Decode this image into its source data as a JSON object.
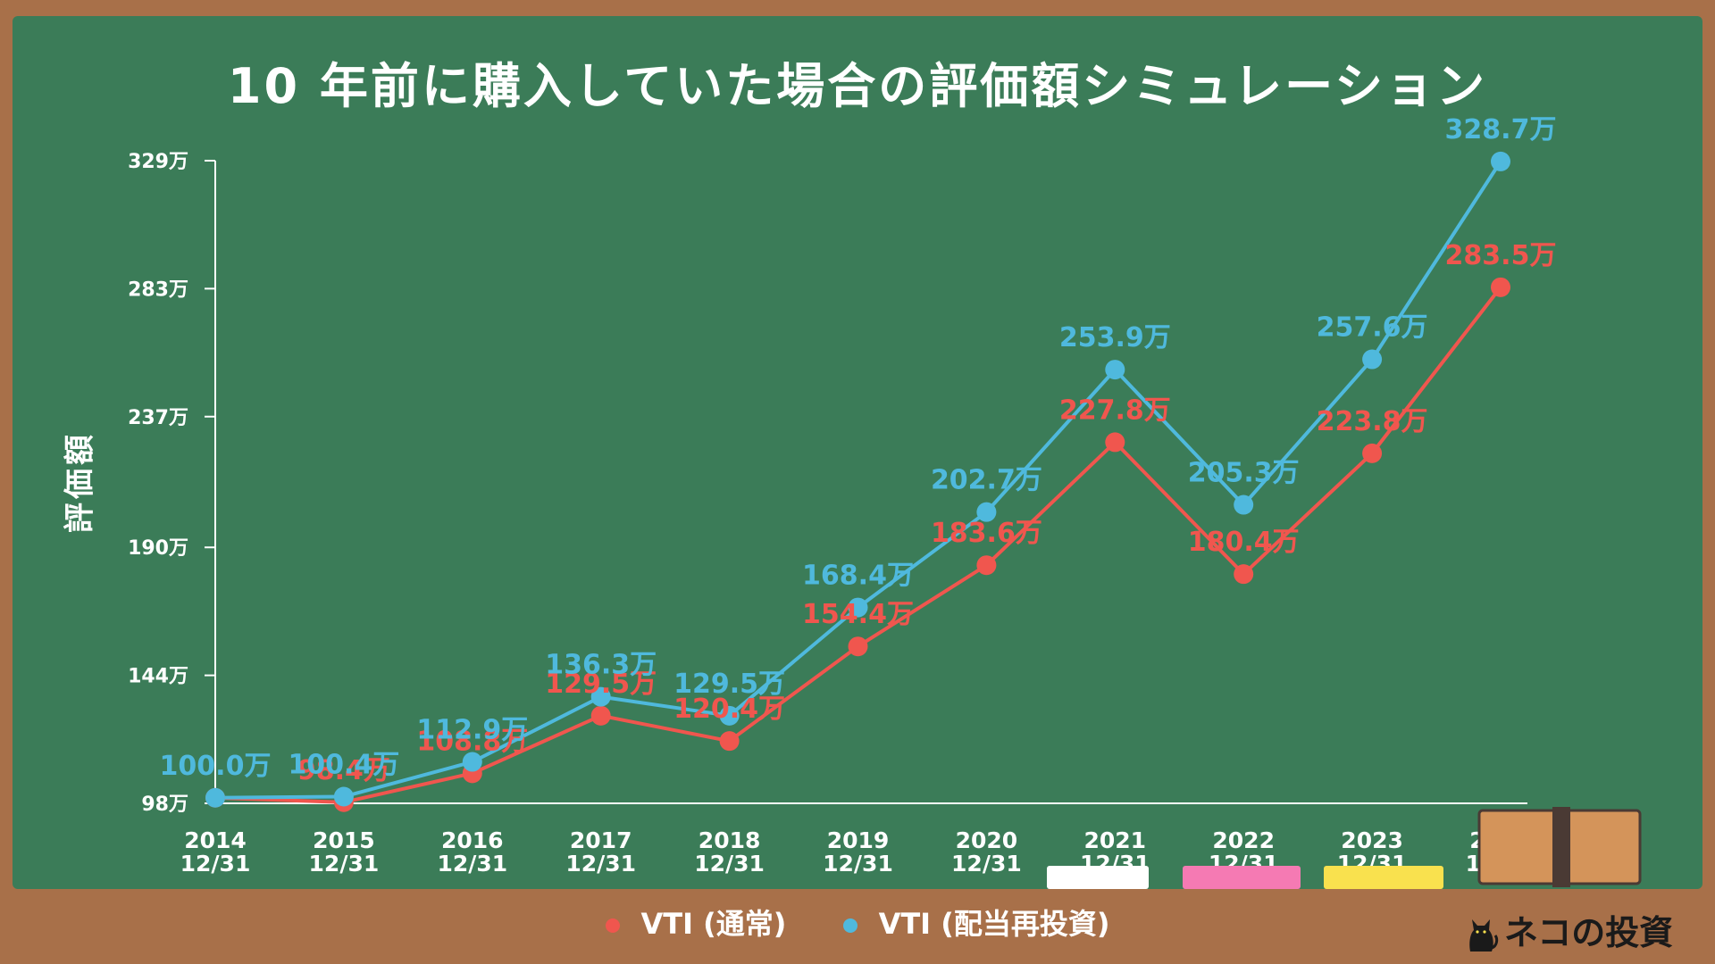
{
  "title": "10 年前に購入していた場合の評価額シミュレーション",
  "brand": "ネコの投資",
  "chart_data": {
    "type": "line",
    "title": "10 年前に購入していた場合の評価額シミュレーション",
    "ylabel": "評価額",
    "xlabel": "",
    "ylim": [
      98,
      329
    ],
    "yticks": [
      "98万",
      "144万",
      "190万",
      "237万",
      "283万",
      "329万"
    ],
    "ytick_values": [
      98,
      144,
      190,
      237,
      283,
      329
    ],
    "categories": [
      [
        "2014",
        "12/31"
      ],
      [
        "2015",
        "12/31"
      ],
      [
        "2016",
        "12/31"
      ],
      [
        "2017",
        "12/31"
      ],
      [
        "2018",
        "12/31"
      ],
      [
        "2019",
        "12/31"
      ],
      [
        "2020",
        "12/31"
      ],
      [
        "2021",
        "12/31"
      ],
      [
        "2022",
        "12/31"
      ],
      [
        "2023",
        "12/31"
      ],
      [
        "2024",
        "12/09"
      ]
    ],
    "grid": false,
    "legend": "bottom",
    "series": [
      {
        "name": "VTI (通常)",
        "color": "#f0564e",
        "values": [
          100.0,
          98.4,
          108.8,
          129.5,
          120.4,
          154.4,
          183.6,
          227.8,
          180.4,
          223.8,
          283.5
        ],
        "labels": [
          "",
          "98.4万",
          "108.8万",
          "129.5万",
          "120.4万",
          "154.4万",
          "183.6万",
          "227.8万",
          "180.4万",
          "223.8万",
          "283.5万"
        ]
      },
      {
        "name": "VTI (配当再投資)",
        "color": "#4fb9dd",
        "values": [
          100.0,
          100.4,
          112.9,
          136.3,
          129.5,
          168.4,
          202.7,
          253.9,
          205.3,
          257.6,
          328.7
        ],
        "labels": [
          "100.0万",
          "100.4万",
          "112.9万",
          "136.3万",
          "129.5万",
          "168.4万",
          "202.7万",
          "253.9万",
          "205.3万",
          "257.6万",
          "328.7万"
        ]
      }
    ]
  },
  "legend": [
    {
      "label": "VTI (通常)",
      "color": "#f0564e"
    },
    {
      "label": "VTI (配当再投資)",
      "color": "#4fb9dd"
    }
  ],
  "decor": {
    "chalk_colors": [
      "#ffffff",
      "#f57ab3",
      "#f9e14e"
    ],
    "eraser_color": "#d4945a",
    "eraser_band": "#4a3a34"
  }
}
